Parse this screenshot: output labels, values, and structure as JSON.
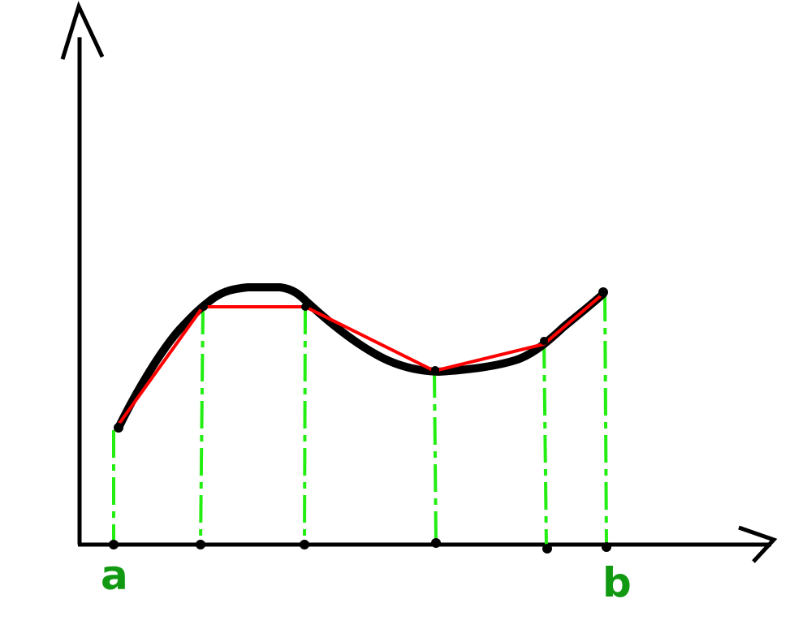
{
  "diagram": {
    "labels": {
      "start": "a",
      "end": "b"
    },
    "colors": {
      "axes": "#000000",
      "curve": "#000000",
      "polyline": "#ff0000",
      "guides": "#22ee11",
      "labels": "#119911",
      "points": "#000000"
    },
    "partition_point_count": 6
  }
}
